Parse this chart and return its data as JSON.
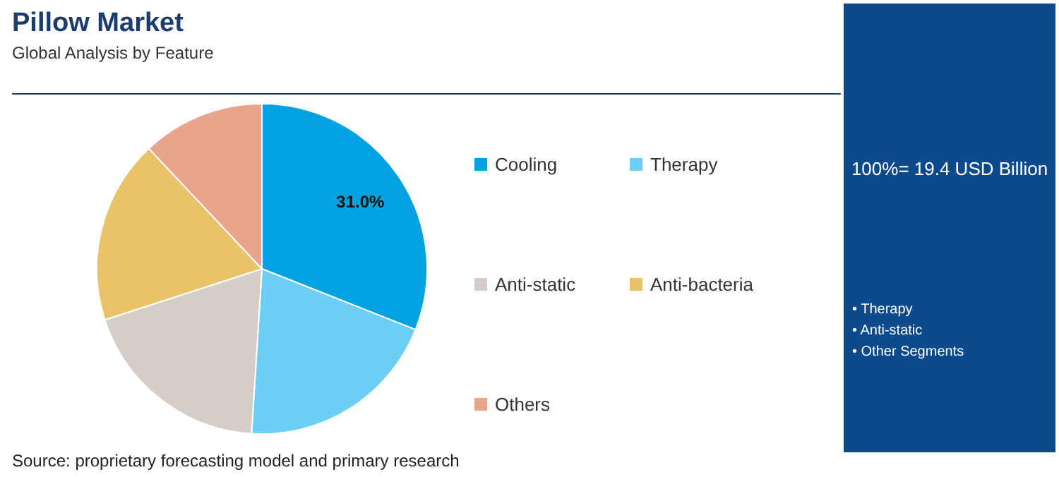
{
  "chart_data": {
    "type": "pie",
    "title": "Pillow Market",
    "subtitle": "Global Analysis by Feature",
    "categories": [
      "Cooling",
      "Therapy",
      "Anti-static",
      "Anti-bacteria",
      "Others"
    ],
    "values": [
      31.0,
      20,
      19,
      18,
      12
    ],
    "colors": [
      "#00a3e0",
      "#6dcff6",
      "#d5cdc8",
      "#e8c36a",
      "#eba48c"
    ],
    "value_labels": [
      "31.0%",
      null,
      null,
      null,
      null
    ],
    "legend": "right",
    "annotations": [
      "100%= 19.4 USD Billion",
      "• Therapy",
      "• Anti-static",
      "• Other Segments",
      "Source: proprietary forecasting model and primary research"
    ]
  }
}
